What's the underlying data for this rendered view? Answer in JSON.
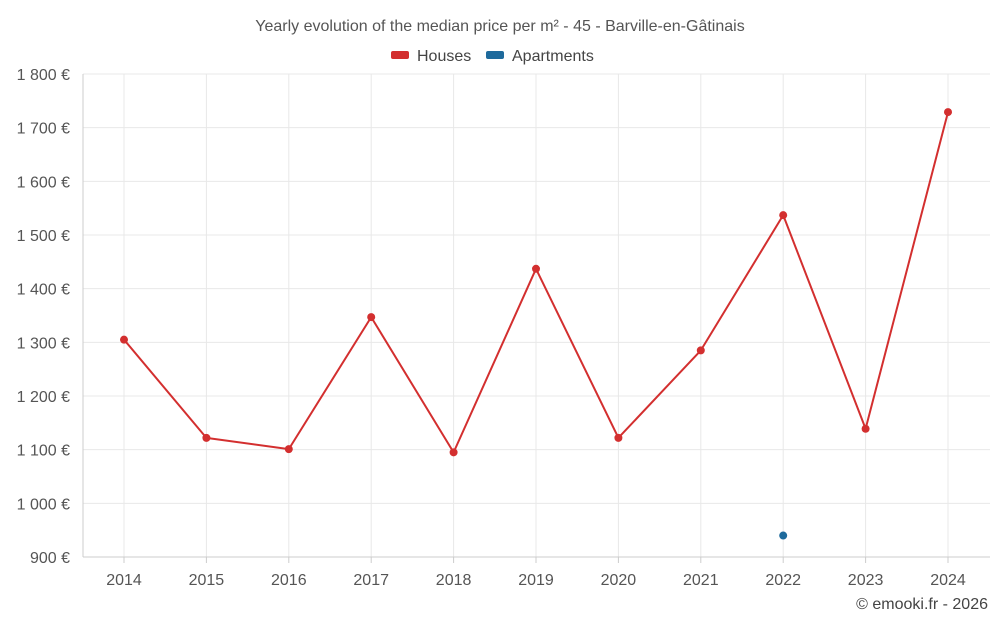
{
  "chart_data": {
    "type": "line",
    "title": "Yearly evolution of the median price per m² - 45 - Barville-en-Gâtinais",
    "categories": [
      "2014",
      "2015",
      "2016",
      "2017",
      "2018",
      "2019",
      "2020",
      "2021",
      "2022",
      "2023",
      "2024"
    ],
    "y_tick_labels": [
      "900 €",
      "1 000 €",
      "1 100 €",
      "1 200 €",
      "1 300 €",
      "1 400 €",
      "1 500 €",
      "1 600 €",
      "1 700 €",
      "1 800 €"
    ],
    "ylim": [
      900,
      1800
    ],
    "grid": true,
    "legend_position": "top-center",
    "series": [
      {
        "name": "Houses",
        "color": "#d32f2f",
        "values": [
          1305,
          1122,
          1101,
          1347,
          1095,
          1437,
          1122,
          1285,
          1537,
          1139,
          1729
        ]
      },
      {
        "name": "Apartments",
        "color": "#1e6a9c",
        "values": [
          null,
          null,
          null,
          null,
          null,
          null,
          null,
          null,
          940,
          null,
          null
        ]
      }
    ]
  },
  "credit": "© emooki.fr - 2026"
}
